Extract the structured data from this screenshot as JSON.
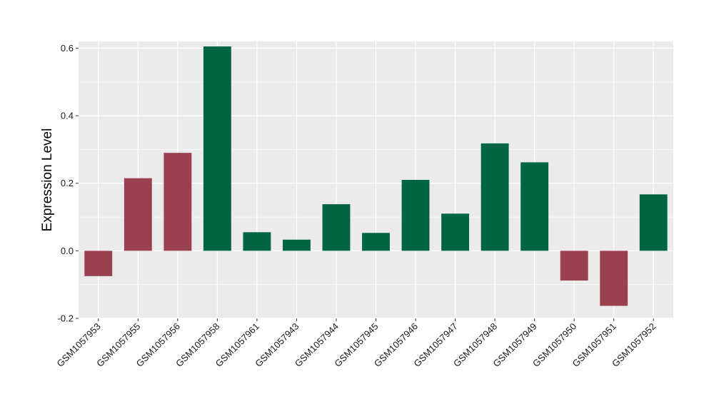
{
  "chart_data": {
    "type": "bar",
    "title": "",
    "xlabel": "",
    "ylabel": "Expression Level",
    "ylim": [
      -0.2,
      0.62
    ],
    "yticks": [
      -0.2,
      0.0,
      0.2,
      0.4,
      0.6
    ],
    "ytick_labels": [
      "-0.2",
      "0.0",
      "0.2",
      "0.4",
      "0.6"
    ],
    "grid": true,
    "legend": "none",
    "categories": [
      "GSM1057953",
      "GSM1057955",
      "GSM1057956",
      "GSM1057958",
      "GSM1057961",
      "GSM1057943",
      "GSM1057944",
      "GSM1057945",
      "GSM1057946",
      "GSM1057947",
      "GSM1057948",
      "GSM1057949",
      "GSM1057950",
      "GSM1057951",
      "GSM1057952"
    ],
    "values": [
      -0.075,
      0.215,
      0.29,
      0.605,
      0.055,
      0.033,
      0.138,
      0.053,
      0.21,
      0.11,
      0.318,
      0.262,
      -0.088,
      -0.163,
      0.167
    ],
    "bar_colors": [
      "#9b404f",
      "#9b404f",
      "#9b404f",
      "#006540",
      "#006540",
      "#006540",
      "#006540",
      "#006540",
      "#006540",
      "#006540",
      "#006540",
      "#006540",
      "#9b404f",
      "#9b404f",
      "#006540"
    ],
    "colors": {
      "panel_background": "#ebebeb",
      "gridline": "#ffffff",
      "group_red": "#9b404f",
      "group_green": "#006540"
    }
  }
}
